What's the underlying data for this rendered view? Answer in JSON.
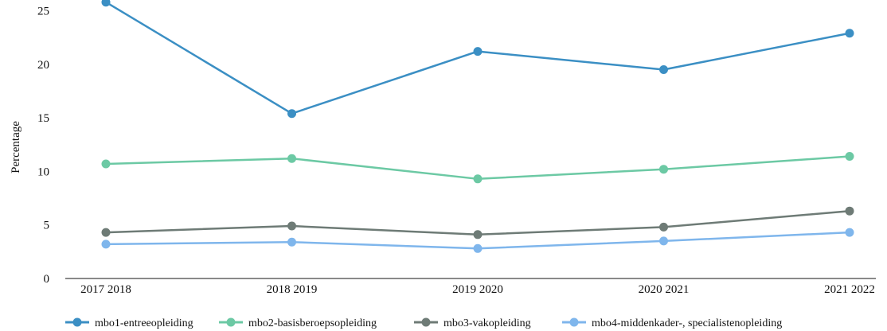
{
  "chart_data": {
    "type": "line",
    "title": "",
    "xlabel": "",
    "ylabel": "Percentage",
    "ylim": [
      0,
      26
    ],
    "yticks": [
      0,
      5,
      10,
      15,
      20,
      25
    ],
    "categories": [
      "2017 2018",
      "2018 2019",
      "2019 2020",
      "2020 2021",
      "2021 2022"
    ],
    "grid": false,
    "legend_position": "bottom",
    "series": [
      {
        "name": "mbo1-entreeopleiding",
        "color": "#3b8fc4",
        "values": [
          25.8,
          15.4,
          21.2,
          19.5,
          22.9
        ]
      },
      {
        "name": "mbo2-basisberoepsopleiding",
        "color": "#6cc9a4",
        "values": [
          10.7,
          11.2,
          9.3,
          10.2,
          11.4
        ]
      },
      {
        "name": "mbo3-vakopleiding",
        "color": "#6e7b76",
        "values": [
          4.3,
          4.9,
          4.1,
          4.8,
          6.3
        ]
      },
      {
        "name": "mbo4-middenkader-, specialistenopleiding",
        "color": "#7fb6ec",
        "values": [
          3.2,
          3.4,
          2.8,
          3.5,
          4.3
        ]
      }
    ]
  }
}
